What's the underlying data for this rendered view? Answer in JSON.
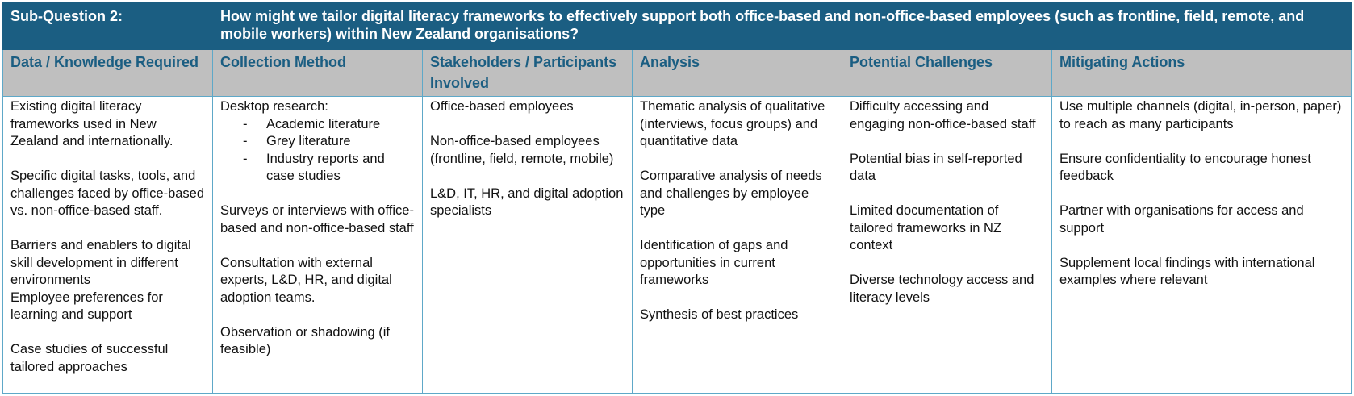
{
  "header": {
    "label": "Sub-Question 2:",
    "question": "How might we tailor digital literacy frameworks to effectively support both office-based and non-office-based employees (such as frontline, field, remote, and mobile workers) within New Zealand organisations?"
  },
  "columns": [
    "Data / Knowledge Required",
    "Collection Method",
    "Stakeholders / Participants Involved",
    "Analysis",
    "Potential Challenges",
    "Mitigating Actions"
  ],
  "data_knowledge": {
    "p1": "Existing digital literacy frameworks used in New Zealand and internationally.",
    "p2": "Specific digital tasks, tools, and challenges faced by office-based vs. non-office-based staff.",
    "p3": "Barriers and enablers to digital skill development in different environments",
    "p4": "Employee preferences for learning and support",
    "p5": "Case studies of successful tailored approaches"
  },
  "collection_method": {
    "intro": "Desktop research:",
    "bullets": [
      "Academic literature",
      "Grey literature",
      "Industry reports and case studies"
    ],
    "p2": "Surveys or interviews with office-based and non-office-based staff",
    "p3": "Consultation with external experts, L&D, HR, and digital adoption teams.",
    "p4": "Observation or shadowing (if feasible)"
  },
  "stakeholders": {
    "p1": "Office-based employees",
    "p2": "Non-office-based employees (frontline, field, remote, mobile)",
    "p3": "L&D, IT, HR, and digital adoption specialists"
  },
  "analysis": {
    "p1": "Thematic analysis of qualitative (interviews, focus groups) and quantitative data",
    "p2": "Comparative analysis of needs and challenges by employee type",
    "p3": "Identification of gaps and opportunities in current frameworks",
    "p4": "Synthesis of best practices"
  },
  "challenges": {
    "p1": "Difficulty accessing and engaging non-office-based staff",
    "p2": "Potential bias in self-reported data",
    "p3": "Limited documentation of tailored frameworks in NZ context",
    "p4": "Diverse technology access and literacy levels"
  },
  "mitigating": {
    "p1": "Use multiple channels (digital, in-person, paper) to reach as many participants",
    "p2": "Ensure confidentiality to encourage honest feedback",
    "p3": "Partner with organisations for access and support",
    "p4": "Supplement local findings with international examples where relevant"
  },
  "colors": {
    "title_bg": "#1b5e82",
    "header_bg": "#bfbfbf",
    "header_text": "#1b5e82",
    "border": "#5ea8c8"
  }
}
